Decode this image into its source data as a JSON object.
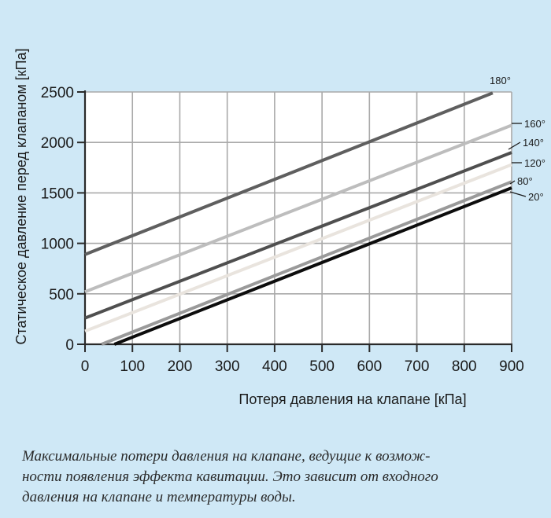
{
  "chart_data": {
    "type": "line",
    "xlabel": "Потеря давления на клапане [кПа]",
    "ylabel": "Статическое давление перед клапаном [кПа]",
    "xlim": [
      0,
      900
    ],
    "ylim": [
      0,
      2500
    ],
    "x_ticks": [
      "0",
      "100",
      "200",
      "300",
      "400",
      "500",
      "600",
      "700",
      "800",
      "900"
    ],
    "y_ticks": [
      "0",
      "500",
      "1000",
      "1500",
      "2000",
      "2500"
    ],
    "grid": true,
    "series": [
      {
        "name": "180°",
        "color": "#5f5f5f",
        "points": [
          [
            0,
            890
          ],
          [
            860,
            2490
          ]
        ]
      },
      {
        "name": "160°",
        "color": "#bdbdbd",
        "points": [
          [
            0,
            520
          ],
          [
            900,
            2170
          ]
        ]
      },
      {
        "name": "140°",
        "color": "#4f4f4f",
        "points": [
          [
            0,
            260
          ],
          [
            900,
            1900
          ]
        ]
      },
      {
        "name": "120°",
        "color": "#e9e4de",
        "points": [
          [
            0,
            130
          ],
          [
            900,
            1780
          ]
        ]
      },
      {
        "name": "80°",
        "color": "#9a9a9a",
        "points": [
          [
            35,
            0
          ],
          [
            900,
            1610
          ]
        ]
      },
      {
        "name": "20°",
        "color": "#0d0d0d",
        "points": [
          [
            62,
            0
          ],
          [
            900,
            1550
          ]
        ]
      }
    ]
  },
  "caption": {
    "line1": "Максимальные потери давления на клапане, ведущие к возмож-",
    "line2": "ности появления эффекта кавитации. Это зависит от входного",
    "line3": "давления на клапане и температуры воды."
  }
}
